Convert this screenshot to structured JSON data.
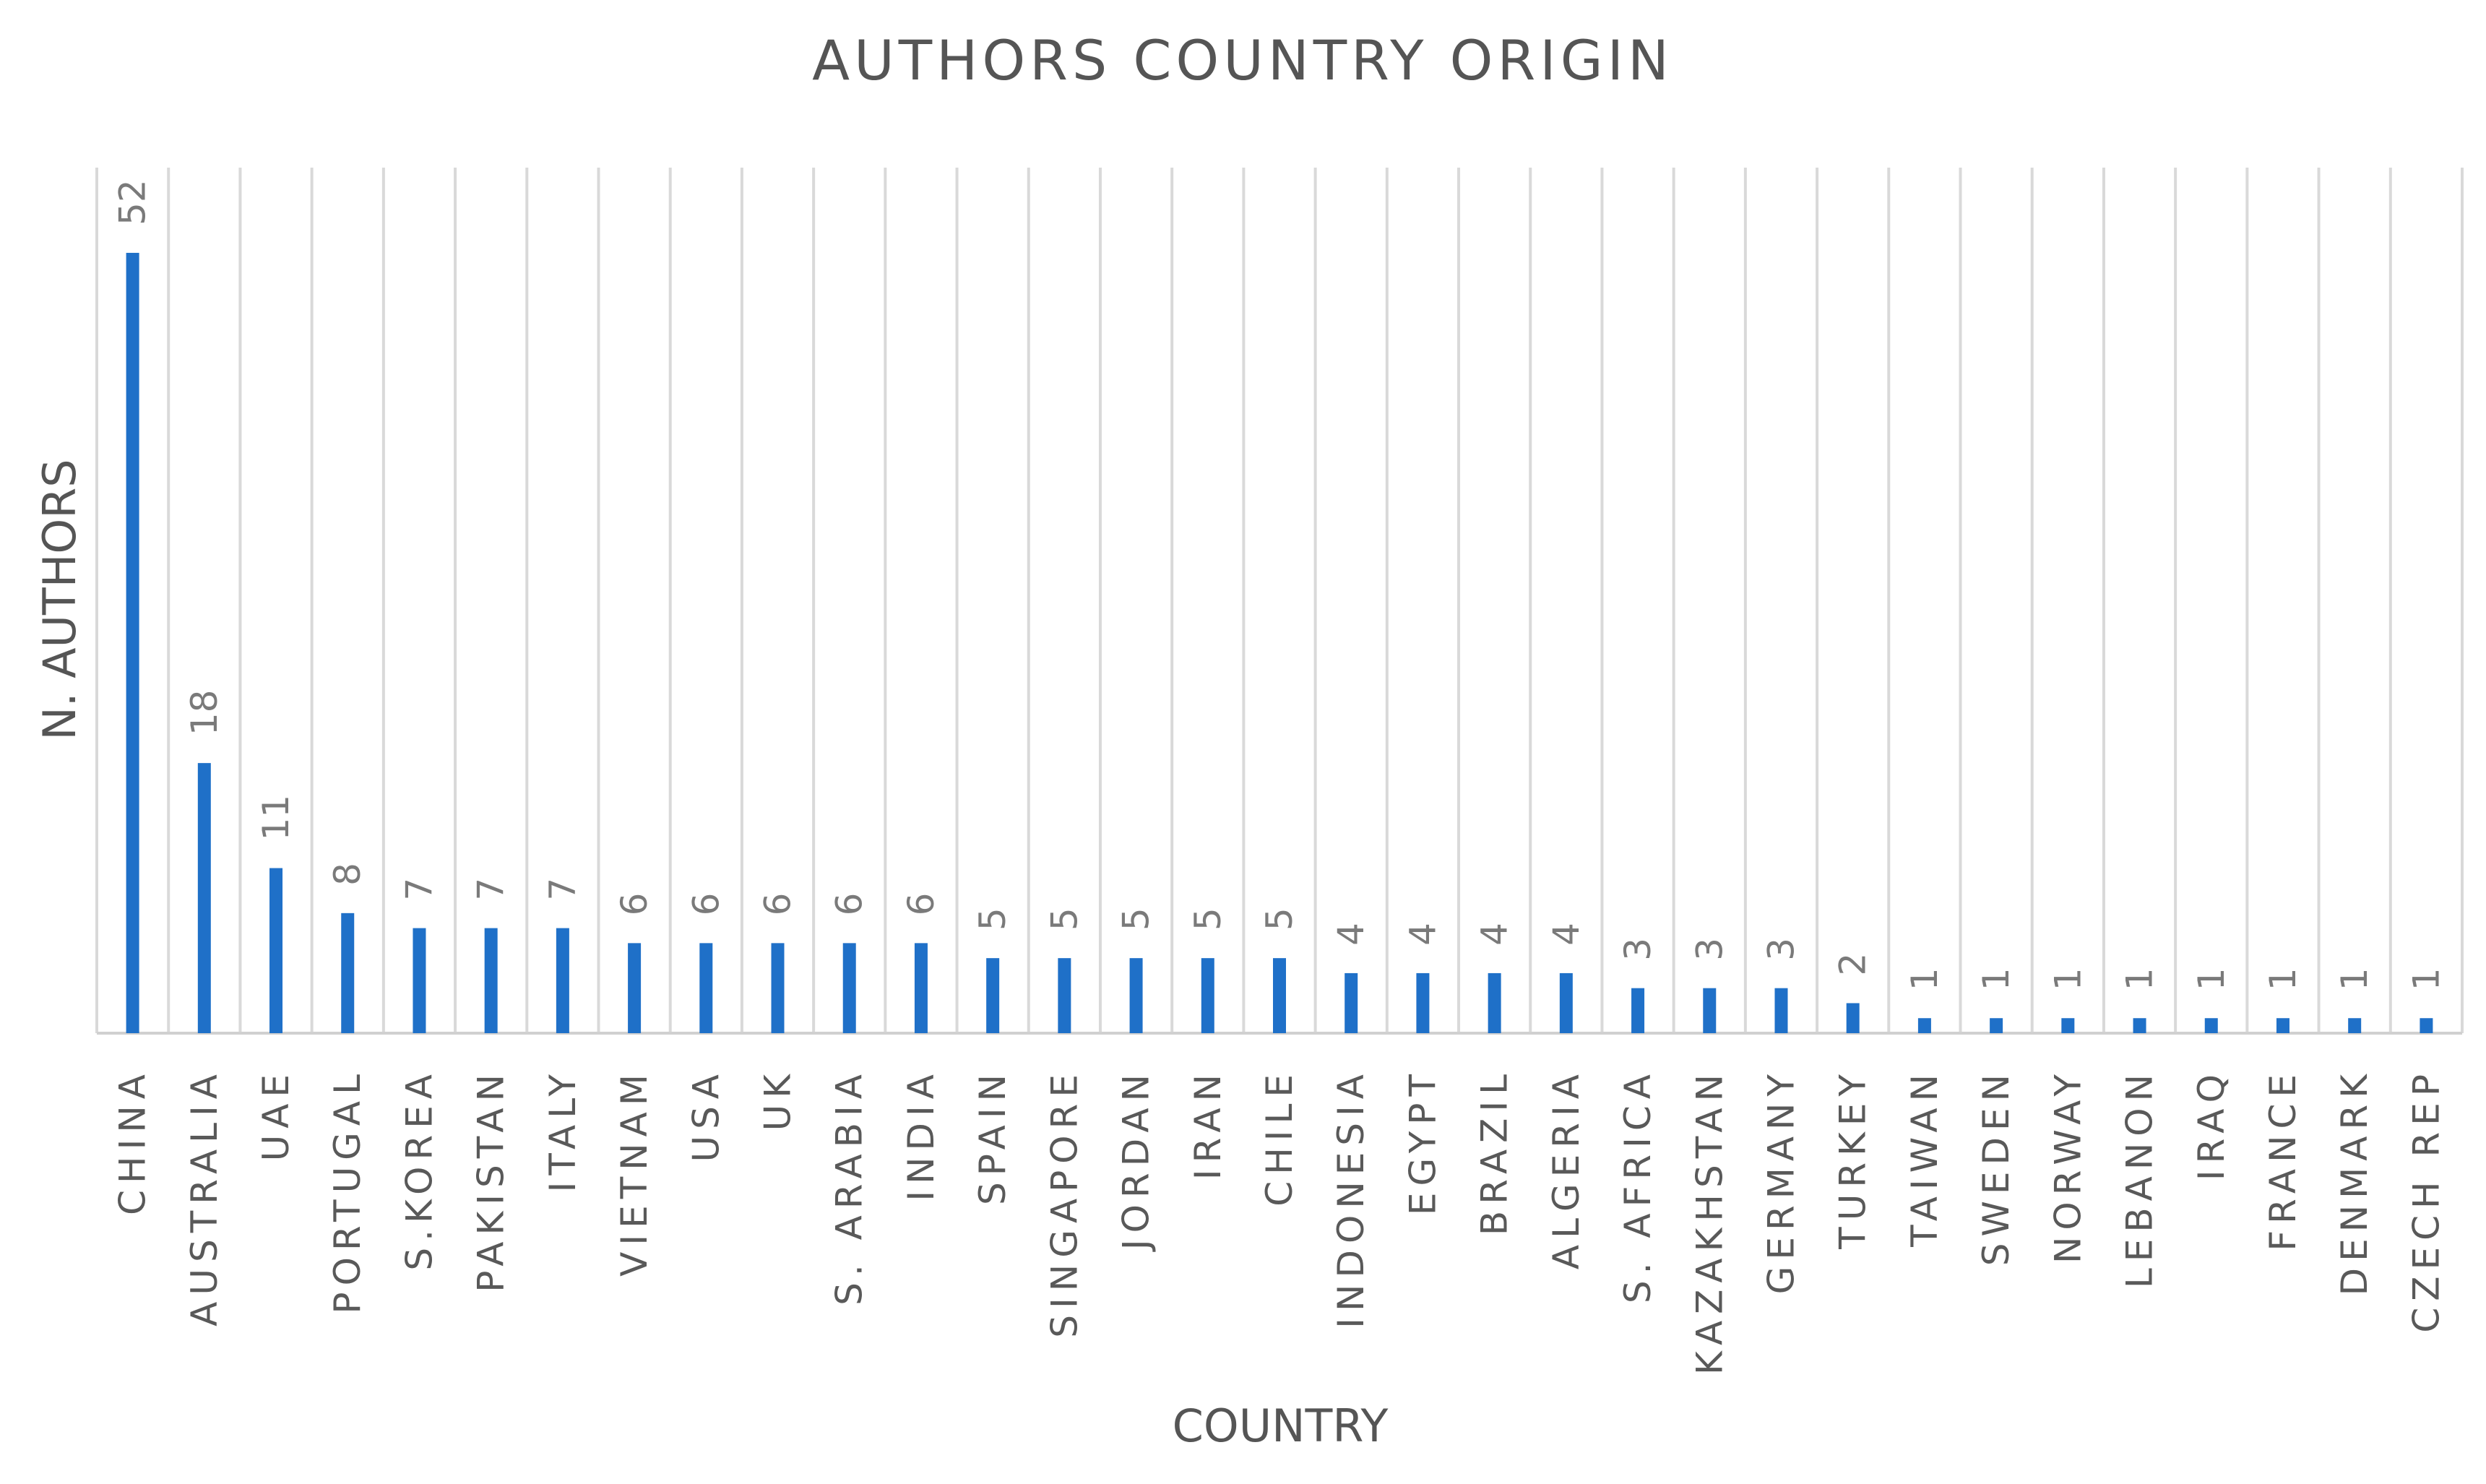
{
  "chart_data": {
    "type": "bar",
    "title": "AUTHORS COUNTRY ORIGIN",
    "xlabel": "COUNTRY",
    "ylabel": "N. AUTHORS",
    "ylim": [
      0,
      60
    ],
    "grid": "vertical lines between categories",
    "legend": "none",
    "bar_color": "#1f70c8",
    "categories": [
      "CHINA",
      "AUSTRALIA",
      "UAE",
      "PORTUGAL",
      "S.KOREA",
      "PAKISTAN",
      "ITALY",
      "VIETNAM",
      "USA",
      "UK",
      "S. ARABIA",
      "INDIA",
      "SPAIN",
      "SINGAPORE",
      "JORDAN",
      "IRAN",
      "CHILE",
      "INDONESIA",
      "EGYPT",
      "BRAZIL",
      "ALGERIA",
      "S. AFRICA",
      "KAZAKHSTAN",
      "GERMANY",
      "TURKEY",
      "TAIWAN",
      "SWEDEN",
      "NORWAY",
      "LEBANON",
      "IRAQ",
      "FRANCE",
      "DENMARK",
      "CZECH REP"
    ],
    "values": [
      52,
      18,
      11,
      8,
      7,
      7,
      7,
      6,
      6,
      6,
      6,
      6,
      5,
      5,
      5,
      5,
      5,
      4,
      4,
      4,
      4,
      3,
      3,
      3,
      2,
      1,
      1,
      1,
      1,
      1,
      1,
      1,
      1
    ]
  }
}
